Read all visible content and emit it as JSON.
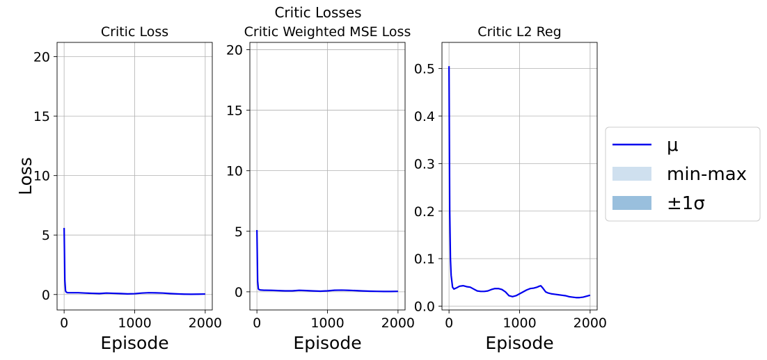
{
  "figure": {
    "suptitle": "Critic Losses",
    "legend": {
      "placement": "right",
      "entries": [
        {
          "label": "μ",
          "kind": "line",
          "color": "#0000ee"
        },
        {
          "label": "min-max",
          "kind": "patch",
          "color": "#cfe0ef"
        },
        {
          "label": "±1σ",
          "kind": "patch",
          "color": "#99bfdd"
        }
      ]
    }
  },
  "chart_data": [
    {
      "type": "line",
      "title": "Critic Loss",
      "xlabel": "Episode",
      "ylabel": "Loss",
      "xlim": [
        -100,
        2100
      ],
      "ylim": [
        -1.3,
        21.2
      ],
      "xticks": [
        0,
        1000,
        2000
      ],
      "yticks": [
        0,
        5,
        10,
        15,
        20
      ],
      "grid": true,
      "series": [
        {
          "name": "μ",
          "color": "#0000ee",
          "x": [
            0,
            5,
            10,
            20,
            30,
            50,
            100,
            200,
            300,
            400,
            500,
            600,
            700,
            800,
            900,
            1000,
            1100,
            1200,
            1300,
            1400,
            1500,
            1600,
            1700,
            1800,
            1900,
            2000
          ],
          "y": [
            5.6,
            3.5,
            1.2,
            0.3,
            0.2,
            0.15,
            0.15,
            0.15,
            0.12,
            0.1,
            0.08,
            0.12,
            0.1,
            0.08,
            0.05,
            0.07,
            0.12,
            0.15,
            0.14,
            0.12,
            0.08,
            0.05,
            0.03,
            0.02,
            0.03,
            0.04
          ]
        }
      ]
    },
    {
      "type": "line",
      "title": "Critic Weighted MSE Loss",
      "xlabel": "Episode",
      "ylabel": "",
      "xlim": [
        -100,
        2100
      ],
      "ylim": [
        -1.5,
        20.6
      ],
      "xticks": [
        0,
        1000,
        2000
      ],
      "yticks": [
        0,
        5,
        10,
        15,
        20
      ],
      "grid": true,
      "series": [
        {
          "name": "μ",
          "color": "#0000ee",
          "x": [
            0,
            5,
            10,
            20,
            30,
            50,
            100,
            200,
            300,
            400,
            500,
            600,
            700,
            800,
            900,
            1000,
            1100,
            1200,
            1300,
            1400,
            1500,
            1600,
            1700,
            1800,
            1900,
            2000
          ],
          "y": [
            5.1,
            3.0,
            0.9,
            0.25,
            0.18,
            0.15,
            0.13,
            0.12,
            0.1,
            0.08,
            0.08,
            0.12,
            0.1,
            0.07,
            0.05,
            0.08,
            0.13,
            0.14,
            0.12,
            0.1,
            0.07,
            0.05,
            0.04,
            0.03,
            0.03,
            0.04
          ]
        }
      ]
    },
    {
      "type": "line",
      "title": "Critic L2 Reg",
      "xlabel": "Episode",
      "ylabel": "",
      "xlim": [
        -100,
        2100
      ],
      "ylim": [
        -0.008,
        0.555
      ],
      "xticks": [
        0,
        1000,
        2000
      ],
      "yticks": [
        0.0,
        0.1,
        0.2,
        0.3,
        0.4,
        0.5
      ],
      "ytick_labels": [
        "0.0",
        "0.1",
        "0.2",
        "0.3",
        "0.4",
        "0.5"
      ],
      "grid": true,
      "series": [
        {
          "name": "μ",
          "color": "#0000ee",
          "x": [
            0,
            5,
            10,
            20,
            30,
            50,
            70,
            100,
            150,
            200,
            250,
            300,
            350,
            400,
            450,
            500,
            550,
            600,
            650,
            700,
            750,
            800,
            850,
            900,
            950,
            1000,
            1050,
            1100,
            1150,
            1200,
            1250,
            1280,
            1300,
            1330,
            1370,
            1400,
            1450,
            1500,
            1550,
            1600,
            1650,
            1700,
            1750,
            1800,
            1850,
            1900,
            1950,
            2000
          ],
          "y": [
            0.505,
            0.35,
            0.2,
            0.1,
            0.065,
            0.04,
            0.036,
            0.038,
            0.042,
            0.043,
            0.041,
            0.04,
            0.036,
            0.032,
            0.031,
            0.031,
            0.032,
            0.035,
            0.037,
            0.037,
            0.035,
            0.03,
            0.022,
            0.02,
            0.022,
            0.026,
            0.03,
            0.034,
            0.037,
            0.038,
            0.04,
            0.042,
            0.043,
            0.038,
            0.03,
            0.028,
            0.026,
            0.025,
            0.024,
            0.023,
            0.022,
            0.02,
            0.019,
            0.018,
            0.018,
            0.019,
            0.021,
            0.023
          ]
        }
      ]
    }
  ]
}
